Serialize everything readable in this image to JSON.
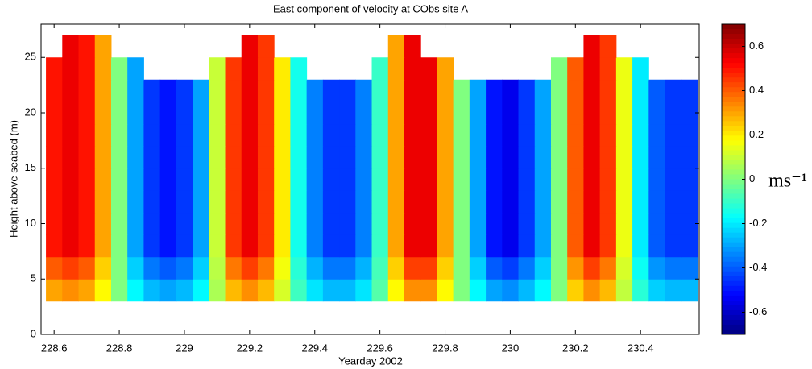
{
  "chart_data": {
    "type": "heatmap",
    "title": "East component of velocity at CObs site A",
    "x_label": "Yearday 2002",
    "y_label": "Height above seabed (m)",
    "colorbar_label": "ms⁻¹",
    "xlim": [
      228.56,
      230.58
    ],
    "xticks": [
      228.6,
      228.8,
      229,
      229.2,
      229.4,
      229.6,
      229.8,
      230,
      230.2,
      230.4
    ],
    "ylim": [
      0,
      28
    ],
    "yticks": [
      0,
      5,
      10,
      15,
      20,
      25
    ],
    "zlim": [
      -0.7,
      0.7
    ],
    "zticks": [
      -0.6,
      -0.4,
      -0.2,
      0,
      0.2,
      0.4,
      0.6
    ],
    "colormap": "jet",
    "x": [
      228.6,
      228.65,
      228.7,
      228.75,
      228.8,
      228.85,
      228.9,
      228.95,
      229.0,
      229.05,
      229.1,
      229.15,
      229.2,
      229.25,
      229.3,
      229.35,
      229.4,
      229.45,
      229.5,
      229.55,
      229.6,
      229.65,
      229.7,
      229.75,
      229.8,
      229.85,
      229.9,
      229.95,
      230.0,
      230.05,
      230.1,
      230.15,
      230.2,
      230.25,
      230.3,
      230.35,
      230.4,
      230.45,
      230.5,
      230.55
    ],
    "y": [
      4,
      6,
      8,
      10,
      12,
      14,
      16,
      18,
      20,
      22,
      24,
      26
    ],
    "z": [
      [
        0.3,
        0.33,
        0.3,
        0.18,
        0,
        -0.18,
        -0.27,
        -0.3,
        -0.27,
        -0.18,
        0.06,
        0.27,
        0.33,
        0.27,
        0.12,
        -0.09,
        -0.21,
        -0.27,
        -0.27,
        -0.21,
        -0.06,
        0.18,
        0.33,
        0.33,
        0.18,
        0,
        -0.18,
        -0.3,
        -0.33,
        -0.27,
        -0.18,
        0,
        0.24,
        0.33,
        0.27,
        0.09,
        -0.12,
        -0.24,
        -0.27,
        -0.27
      ],
      [
        0.4,
        0.44,
        0.4,
        0.24,
        0,
        -0.24,
        -0.36,
        -0.4,
        -0.36,
        -0.24,
        0.08,
        0.36,
        0.44,
        0.36,
        0.16,
        -0.12,
        -0.28,
        -0.36,
        -0.36,
        -0.28,
        -0.08,
        0.24,
        0.44,
        0.44,
        0.24,
        0,
        -0.24,
        -0.4,
        -0.44,
        -0.36,
        -0.24,
        0,
        0.32,
        0.44,
        0.36,
        0.12,
        -0.16,
        -0.32,
        -0.36,
        -0.36
      ],
      [
        0.5,
        0.55,
        0.5,
        0.3,
        0,
        -0.3,
        -0.45,
        -0.5,
        -0.45,
        -0.3,
        0.1,
        0.45,
        0.55,
        0.45,
        0.2,
        -0.15,
        -0.35,
        -0.45,
        -0.45,
        -0.35,
        -0.1,
        0.3,
        0.55,
        0.55,
        0.3,
        0,
        -0.3,
        -0.5,
        -0.55,
        -0.45,
        -0.3,
        0,
        0.4,
        0.55,
        0.45,
        0.15,
        -0.2,
        -0.4,
        -0.45,
        -0.45
      ],
      [
        0.5,
        0.55,
        0.5,
        0.3,
        0,
        -0.3,
        -0.45,
        -0.5,
        -0.45,
        -0.3,
        0.1,
        0.45,
        0.55,
        0.45,
        0.2,
        -0.15,
        -0.35,
        -0.45,
        -0.45,
        -0.35,
        -0.1,
        0.3,
        0.55,
        0.55,
        0.3,
        0,
        -0.3,
        -0.5,
        -0.55,
        -0.45,
        -0.3,
        0,
        0.4,
        0.55,
        0.45,
        0.15,
        -0.2,
        -0.4,
        -0.45,
        -0.45
      ],
      [
        0.5,
        0.55,
        0.5,
        0.3,
        0,
        -0.3,
        -0.45,
        -0.5,
        -0.45,
        -0.3,
        0.1,
        0.45,
        0.55,
        0.45,
        0.2,
        -0.15,
        -0.35,
        -0.45,
        -0.45,
        -0.35,
        -0.1,
        0.3,
        0.55,
        0.55,
        0.3,
        0,
        -0.3,
        -0.5,
        -0.55,
        -0.45,
        -0.3,
        0,
        0.4,
        0.55,
        0.45,
        0.15,
        -0.2,
        -0.4,
        -0.45,
        -0.45
      ],
      [
        0.5,
        0.55,
        0.5,
        0.3,
        0,
        -0.3,
        -0.45,
        -0.5,
        -0.45,
        -0.3,
        0.1,
        0.45,
        0.55,
        0.45,
        0.2,
        -0.15,
        -0.35,
        -0.45,
        -0.45,
        -0.35,
        -0.1,
        0.3,
        0.55,
        0.55,
        0.3,
        0,
        -0.3,
        -0.5,
        -0.55,
        -0.45,
        -0.3,
        0,
        0.4,
        0.55,
        0.45,
        0.15,
        -0.2,
        -0.4,
        -0.45,
        -0.45
      ],
      [
        0.5,
        0.55,
        0.5,
        0.3,
        0,
        -0.3,
        -0.45,
        -0.5,
        -0.45,
        -0.3,
        0.1,
        0.45,
        0.55,
        0.45,
        0.2,
        -0.15,
        -0.35,
        -0.45,
        -0.45,
        -0.35,
        -0.1,
        0.3,
        0.55,
        0.55,
        0.3,
        0,
        -0.3,
        -0.5,
        -0.55,
        -0.45,
        -0.3,
        0,
        0.4,
        0.55,
        0.45,
        0.15,
        -0.2,
        -0.4,
        -0.45,
        -0.45
      ],
      [
        0.5,
        0.55,
        0.5,
        0.3,
        0,
        -0.3,
        -0.45,
        -0.5,
        -0.45,
        -0.3,
        0.1,
        0.45,
        0.55,
        0.45,
        0.2,
        -0.15,
        -0.35,
        -0.45,
        -0.45,
        -0.35,
        -0.1,
        0.3,
        0.55,
        0.55,
        0.3,
        0,
        -0.3,
        -0.5,
        -0.55,
        -0.45,
        -0.3,
        0,
        0.4,
        0.55,
        0.45,
        0.15,
        -0.2,
        -0.4,
        -0.45,
        -0.45
      ],
      [
        0.5,
        0.55,
        0.5,
        0.3,
        0,
        -0.3,
        -0.45,
        -0.5,
        -0.45,
        -0.3,
        0.1,
        0.45,
        0.55,
        0.45,
        0.2,
        -0.15,
        -0.35,
        -0.45,
        -0.45,
        -0.35,
        -0.1,
        0.3,
        0.55,
        0.55,
        0.3,
        0,
        -0.3,
        -0.5,
        -0.55,
        -0.45,
        -0.3,
        0,
        0.4,
        0.55,
        0.45,
        0.15,
        -0.2,
        -0.4,
        -0.45,
        -0.45
      ],
      [
        0.5,
        0.55,
        0.5,
        0.3,
        0,
        -0.3,
        -0.45,
        -0.5,
        -0.45,
        -0.3,
        0.1,
        0.45,
        0.55,
        0.45,
        0.2,
        -0.15,
        -0.35,
        -0.45,
        -0.45,
        -0.35,
        -0.1,
        0.3,
        0.55,
        0.55,
        0.3,
        0,
        -0.3,
        -0.5,
        -0.55,
        -0.45,
        -0.3,
        0,
        0.4,
        0.55,
        0.45,
        0.15,
        -0.2,
        -0.4,
        -0.45,
        -0.45
      ],
      [
        0.5,
        0.55,
        0.5,
        0.3,
        0,
        -0.3,
        null,
        null,
        null,
        null,
        0.1,
        0.45,
        0.55,
        0.45,
        0.2,
        -0.15,
        null,
        null,
        null,
        null,
        -0.1,
        0.3,
        0.55,
        0.55,
        0.3,
        null,
        null,
        null,
        null,
        null,
        null,
        0,
        0.4,
        0.55,
        0.45,
        0.15,
        -0.2,
        null,
        null,
        null
      ],
      [
        null,
        0.55,
        0.5,
        0.3,
        null,
        null,
        null,
        null,
        null,
        null,
        null,
        null,
        0.55,
        0.45,
        null,
        null,
        null,
        null,
        null,
        null,
        null,
        0.3,
        0.55,
        null,
        null,
        null,
        null,
        null,
        null,
        null,
        null,
        null,
        null,
        0.55,
        0.45,
        null,
        null,
        null,
        null,
        null
      ]
    ]
  }
}
